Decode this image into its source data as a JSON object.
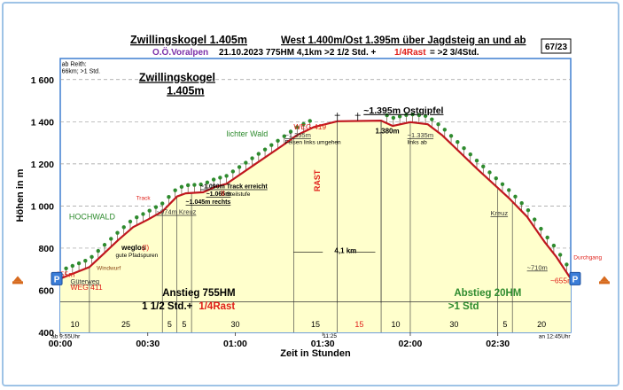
{
  "header": {
    "title_main": "Zwillingskogel  1.405m",
    "title_rest": "West 1.400m/Ost 1.395m  über Jagdsteig an und ab",
    "region": "O.Ö.Voralpen",
    "info_1": "21.10.2023  775HM  4,1km  >2 1/2 Std. +",
    "info_rast": "1/4Rast",
    "info_2": "= >2 3/4Std.",
    "badge": "67/23"
  },
  "chart_data": {
    "type": "area",
    "xlabel": "Zeit in Stunden",
    "ylabel": "Höhen in m",
    "xlim_min": [
      0,
      175
    ],
    "ylim": [
      400,
      1700
    ],
    "yticks": [
      400,
      600,
      800,
      1000,
      1200,
      1400,
      1600
    ],
    "xticks": [
      {
        "min": 0,
        "label": "00:00"
      },
      {
        "min": 30,
        "label": "00:30"
      },
      {
        "min": 60,
        "label": "01:00"
      },
      {
        "min": 90,
        "label": "01:30"
      },
      {
        "min": 120,
        "label": "02:00"
      },
      {
        "min": 150,
        "label": "02:30"
      }
    ],
    "profile": [
      {
        "t": 0,
        "h": 655
      },
      {
        "t": 10,
        "h": 710
      },
      {
        "t": 15,
        "h": 775
      },
      {
        "t": 20,
        "h": 840
      },
      {
        "t": 25,
        "h": 900
      },
      {
        "t": 30,
        "h": 935
      },
      {
        "t": 35,
        "h": 974
      },
      {
        "t": 40,
        "h": 1045
      },
      {
        "t": 43,
        "h": 1060
      },
      {
        "t": 49,
        "h": 1065
      },
      {
        "t": 53,
        "h": 1090
      },
      {
        "t": 57,
        "h": 1105
      },
      {
        "t": 67,
        "h": 1200
      },
      {
        "t": 76,
        "h": 1285
      },
      {
        "t": 81,
        "h": 1335
      },
      {
        "t": 87,
        "h": 1375
      },
      {
        "t": 95,
        "h": 1402
      },
      {
        "t": 110,
        "h": 1405
      },
      {
        "t": 114,
        "h": 1380
      },
      {
        "t": 120,
        "h": 1398
      },
      {
        "t": 126,
        "h": 1388
      },
      {
        "t": 131,
        "h": 1335
      },
      {
        "t": 143,
        "h": 1175
      },
      {
        "t": 154,
        "h": 1035
      },
      {
        "t": 160,
        "h": 950
      },
      {
        "t": 166,
        "h": 830
      },
      {
        "t": 170,
        "h": 760
      },
      {
        "t": 175,
        "h": 655
      }
    ],
    "segments": {
      "bounds": [
        0,
        10,
        35,
        40,
        45,
        80,
        95,
        110,
        120,
        150,
        155,
        175
      ],
      "labels": [
        {
          "t": 5,
          "label": "10",
          "rast": false
        },
        {
          "t": 22.5,
          "label": "25",
          "rast": false
        },
        {
          "t": 37.5,
          "label": "5",
          "rast": false
        },
        {
          "t": 42.5,
          "label": "5",
          "rast": false
        },
        {
          "t": 60,
          "label": "30",
          "rast": false
        },
        {
          "t": 87.5,
          "label": "15",
          "rast": false
        },
        {
          "t": 102.5,
          "label": "15",
          "rast": true
        },
        {
          "t": 115,
          "label": "10",
          "rast": false
        },
        {
          "t": 135,
          "label": "30",
          "rast": false
        },
        {
          "t": 152.5,
          "label": "5",
          "rast": false
        },
        {
          "t": 165,
          "label": "20",
          "rast": false
        }
      ]
    },
    "annotations": [
      {
        "t": 27,
        "h": 1593,
        "text": "Zwillingskogel",
        "cls": "peak"
      },
      {
        "t": 36.5,
        "h": 1530,
        "text": "1.405m",
        "cls": "peak"
      },
      {
        "t": 104,
        "h": 1440,
        "text": "~1.395m Ostgipfel",
        "cls": "ost"
      },
      {
        "t": 0.5,
        "h": 1665,
        "text": "ab Reith:",
        "cls": "note"
      },
      {
        "t": 0.5,
        "h": 1630,
        "text": "66km; >1 Std.",
        "cls": "note"
      },
      {
        "t": 57,
        "h": 1330,
        "text": "lichter Wald",
        "cls": "green"
      },
      {
        "t": 80,
        "h": 1363,
        "text": "WEG 419",
        "cls": "red"
      },
      {
        "t": 77,
        "h": 1325,
        "text": "~1.355m",
        "cls": "dark"
      },
      {
        "t": 77,
        "h": 1295,
        "text": "Felsen links umgehen",
        "cls": "tiny"
      },
      {
        "t": 108,
        "h": 1345,
        "text": "1.380m",
        "cls": "darkb"
      },
      {
        "t": 119,
        "h": 1325,
        "text": "~1.335m",
        "cls": "dark"
      },
      {
        "t": 119,
        "h": 1295,
        "text": "links ab",
        "cls": "tiny"
      },
      {
        "t": 48,
        "h": 1083,
        "text": "~1.090m Track erreicht",
        "cls": "darks"
      },
      {
        "t": 50,
        "h": 1048,
        "text": "~1.065m",
        "cls": "darks"
      },
      {
        "t": 55,
        "h": 1048,
        "text": "II",
        "cls": "red"
      },
      {
        "t": 57,
        "h": 1048,
        "text": "Steilstufe",
        "cls": "tiny"
      },
      {
        "t": 43,
        "h": 1010,
        "text": "~1.045m rechts",
        "cls": "darks"
      },
      {
        "t": 33,
        "h": 961,
        "text": "~974m Kreuz",
        "cls": "dark"
      },
      {
        "t": 26,
        "h": 1028,
        "text": "Track",
        "cls": "redsmall"
      },
      {
        "t": 3,
        "h": 937,
        "text": "HOCHWALD",
        "cls": "green"
      },
      {
        "t": 21,
        "h": 791,
        "text": "weglos",
        "cls": "blackb"
      },
      {
        "t": 28,
        "h": 791,
        "text": "(I)",
        "cls": "red"
      },
      {
        "t": 19,
        "h": 758,
        "text": "gute Pfadspuren",
        "cls": "tiny"
      },
      {
        "t": 12.5,
        "h": 696,
        "text": "Windwurf",
        "cls": "brown"
      },
      {
        "t": 3.5,
        "h": 632,
        "text": "Güterweg",
        "cls": "dark"
      },
      {
        "t": 3.5,
        "h": 602,
        "text": "WEG 411",
        "cls": "red"
      },
      {
        "t": 147.5,
        "h": 955,
        "text": "Kreuz",
        "cls": "dark"
      },
      {
        "t": 160,
        "h": 697,
        "text": "~710m",
        "cls": "dark"
      },
      {
        "t": 168,
        "h": 633,
        "text": "~655m",
        "cls": "red"
      },
      {
        "t": 176,
        "h": 748,
        "text": "Durchgang",
        "cls": "redsmall"
      },
      {
        "t": -3,
        "h": 662,
        "text": "~655m",
        "cls": "red"
      },
      {
        "t": 89,
        "h": 1120,
        "text": "RAST",
        "cls": "rast"
      },
      {
        "t": 94,
        "h": 777,
        "text": "4,1 km",
        "cls": "darkb"
      },
      {
        "t": 35,
        "h": 573,
        "text": "Anstieg 755HM",
        "cls": "big"
      },
      {
        "t": 28,
        "h": 510,
        "text": "1 1/2 Std.+",
        "cls": "big"
      },
      {
        "t": 47.5,
        "h": 510,
        "text": "1/4Rast",
        "cls": "bigred"
      },
      {
        "t": 135,
        "h": 573,
        "text": "Abstieg 20HM",
        "cls": "biggreen"
      },
      {
        "t": 133,
        "h": 510,
        "text": ">1 Std",
        "cls": "biggreen"
      },
      {
        "t": 90,
        "h": 375,
        "text": "11:25",
        "cls": "tiny"
      },
      {
        "t": -3,
        "h": 372,
        "text": "ab 9:55Uhr",
        "cls": "tiny"
      },
      {
        "t": 164,
        "h": 372,
        "text": "an 12:45Uhr",
        "cls": "tiny"
      }
    ],
    "parking": {
      "label": "P"
    }
  }
}
